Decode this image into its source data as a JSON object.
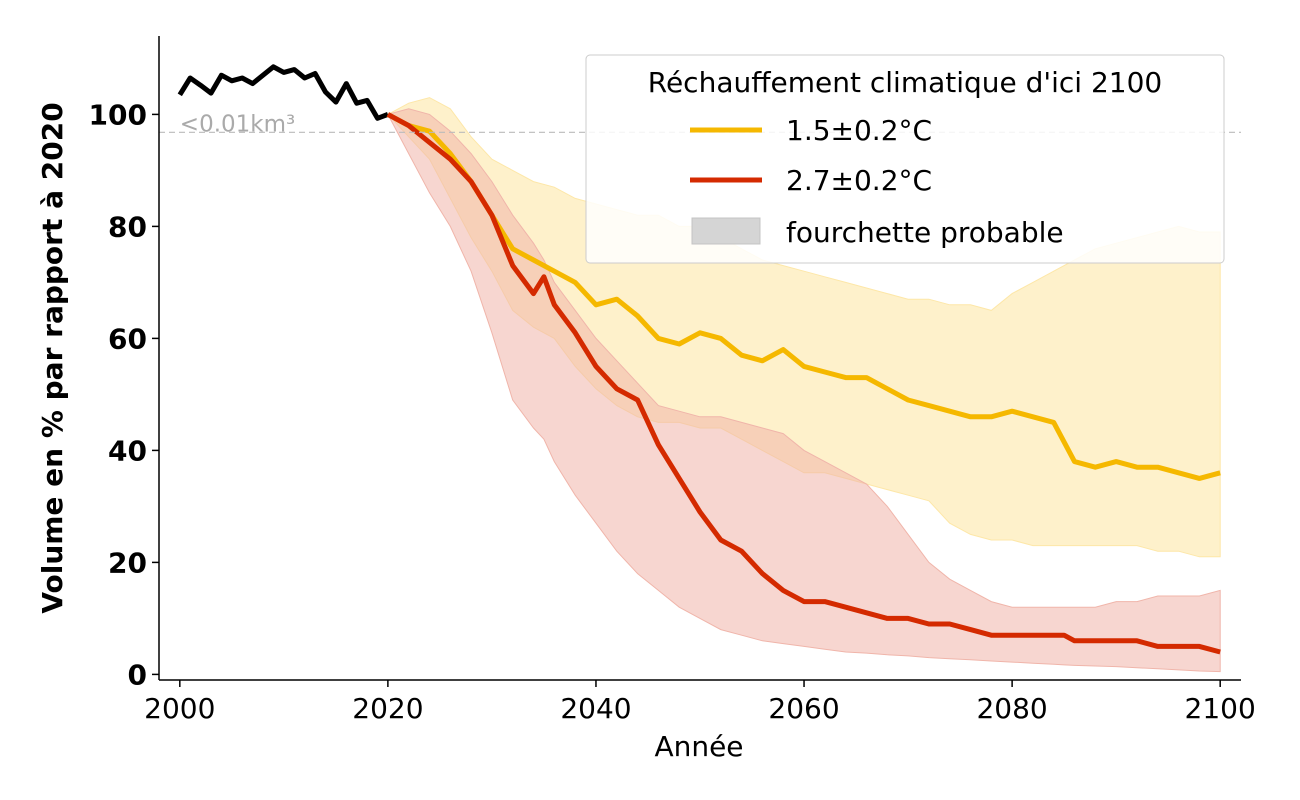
{
  "chart_data": {
    "type": "line",
    "xlabel": "Année",
    "ylabel": "Volume en % par rapport à 2020",
    "xlim": [
      1998,
      2102
    ],
    "ylim": [
      -1,
      114
    ],
    "x_ticks": [
      2000,
      2020,
      2040,
      2060,
      2080,
      2100
    ],
    "y_ticks": [
      0,
      20,
      40,
      60,
      80,
      100
    ],
    "x_tick_labels": [
      "2000",
      "2020",
      "2040",
      "2060",
      "2080",
      "2100"
    ],
    "y_tick_labels": [
      "0",
      "20",
      "40",
      "60",
      "80",
      "100"
    ],
    "grid": false,
    "reference_line": {
      "y": 96.8,
      "label": "<0.01km³",
      "color": "#bbbbbb",
      "style": "dashed"
    },
    "legend": {
      "title": "Réchauffement climatique d'ici 2100",
      "position": "top-right",
      "entries": [
        "1.5±0.2°C",
        "2.7±0.2°C",
        "fourchette probable"
      ]
    },
    "historical": {
      "color": "#000000",
      "x": [
        2000,
        2001,
        2002,
        2003,
        2004,
        2005,
        2006,
        2007,
        2008,
        2009,
        2010,
        2011,
        2012,
        2013,
        2014,
        2015,
        2016,
        2017,
        2018,
        2019,
        2020
      ],
      "y": [
        103.5,
        106.5,
        105.2,
        103.8,
        107,
        106,
        106.5,
        105.5,
        107,
        108.5,
        107.5,
        108,
        106.5,
        107.3,
        104,
        102.2,
        105.5,
        102,
        102.5,
        99.3,
        100
      ]
    },
    "series": [
      {
        "name": "1.5±0.2°C",
        "color": "#f5b800",
        "band_color": "#fde7a8",
        "x": [
          2020,
          2022,
          2024,
          2026,
          2028,
          2030,
          2032,
          2034,
          2036,
          2038,
          2040,
          2042,
          2044,
          2046,
          2048,
          2050,
          2052,
          2054,
          2056,
          2058,
          2060,
          2062,
          2064,
          2066,
          2068,
          2070,
          2072,
          2074,
          2076,
          2078,
          2080,
          2082,
          2084,
          2086,
          2088,
          2090,
          2092,
          2094,
          2096,
          2098,
          2100
        ],
        "y": [
          100,
          98,
          97,
          93,
          88,
          82,
          76,
          74,
          72,
          70,
          66,
          67,
          64,
          60,
          59,
          61,
          60,
          57,
          56,
          58,
          55,
          54,
          53,
          53,
          51,
          49,
          48,
          47,
          46,
          46,
          47,
          46,
          45,
          38,
          37,
          38,
          37,
          37,
          36,
          35,
          36
        ],
        "lower": [
          100,
          96,
          92,
          85,
          78,
          72,
          65,
          62,
          60,
          55,
          51,
          48,
          46,
          45,
          45,
          44,
          44,
          42,
          40,
          38,
          36,
          36,
          35,
          34,
          33,
          32,
          31,
          27,
          25,
          24,
          24,
          23,
          23,
          23,
          23,
          23,
          23,
          22,
          22,
          21,
          21
        ],
        "upper": [
          100,
          102,
          103,
          101,
          96,
          92,
          90,
          88,
          87,
          85,
          84,
          83,
          82,
          82,
          80,
          80,
          78,
          76,
          74,
          73,
          72,
          71,
          70,
          69,
          68,
          67,
          67,
          66,
          66,
          65,
          68,
          70,
          72,
          74,
          76,
          77,
          78,
          79,
          80,
          79,
          79
        ]
      },
      {
        "name": "2.7±0.2°C",
        "color": "#d42a00",
        "band_color": "#f0b5aa",
        "x": [
          2020,
          2022,
          2024,
          2026,
          2028,
          2030,
          2032,
          2034,
          2035,
          2036,
          2038,
          2040,
          2042,
          2044,
          2046,
          2048,
          2050,
          2052,
          2054,
          2056,
          2058,
          2060,
          2062,
          2064,
          2066,
          2068,
          2070,
          2072,
          2074,
          2076,
          2078,
          2080,
          2082,
          2084,
          2085,
          2086,
          2088,
          2090,
          2092,
          2094,
          2096,
          2098,
          2100
        ],
        "y": [
          100,
          98,
          95,
          92,
          88,
          82,
          73,
          68,
          71,
          66,
          61,
          55,
          51,
          49,
          41,
          35,
          29,
          24,
          22,
          18,
          15,
          13,
          13,
          12,
          11,
          10,
          10,
          9,
          9,
          8,
          7,
          7,
          7,
          7,
          7,
          6,
          6,
          6,
          6,
          5,
          5,
          5,
          4
        ],
        "lower": [
          100,
          93,
          86,
          80,
          72,
          61,
          49,
          44,
          42,
          38,
          32,
          27,
          22,
          18,
          15,
          12,
          10,
          8,
          7,
          6,
          5.5,
          5,
          4.5,
          4,
          3.8,
          3.5,
          3.3,
          3,
          2.8,
          2.6,
          2.4,
          2.2,
          2,
          1.8,
          1.7,
          1.6,
          1.5,
          1.4,
          1.2,
          1,
          0.8,
          0.6,
          0.5
        ],
        "upper": [
          100,
          101,
          100,
          97,
          93,
          88,
          82,
          77,
          74,
          70,
          65,
          60,
          56,
          52,
          48,
          47,
          46,
          46,
          45,
          44,
          43,
          40,
          38,
          36,
          34,
          30,
          25,
          20,
          17,
          15,
          13,
          12,
          12,
          12,
          12,
          12,
          12,
          13,
          13,
          14,
          14,
          14,
          15
        ]
      }
    ]
  }
}
